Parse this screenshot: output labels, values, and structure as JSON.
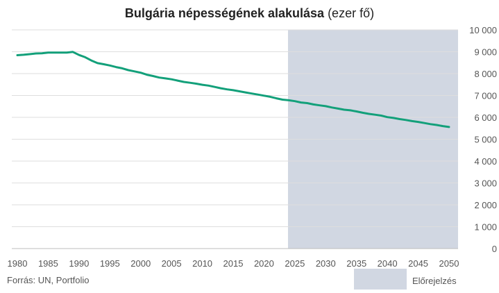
{
  "chart_data": {
    "type": "line",
    "title_bold": "Bulgária népességének alakulása",
    "title_rest": "(ezer fő)",
    "source": "Forrás: UN, Portfolio",
    "legend": {
      "label": "Előrejelzés",
      "color": "#d1d7e2"
    },
    "forecast_range": [
      2024,
      2051
    ],
    "line_color": "#13a07a",
    "xlim": [
      1980,
      2050
    ],
    "ylim": [
      0,
      10000
    ],
    "x_ticks": [
      1980,
      1985,
      1990,
      1995,
      2000,
      2005,
      2010,
      2015,
      2020,
      2025,
      2030,
      2035,
      2040,
      2045,
      2050
    ],
    "y_ticks": [
      {
        "value": 0,
        "label": "0"
      },
      {
        "value": 1000,
        "label": "1 000"
      },
      {
        "value": 2000,
        "label": "2 000"
      },
      {
        "value": 3000,
        "label": "3 000"
      },
      {
        "value": 4000,
        "label": "4 000"
      },
      {
        "value": 5000,
        "label": "5 000"
      },
      {
        "value": 6000,
        "label": "6 000"
      },
      {
        "value": 7000,
        "label": "7 000"
      },
      {
        "value": 8000,
        "label": "8 000"
      },
      {
        "value": 9000,
        "label": "9 000"
      },
      {
        "value": 10000,
        "label": "10 000"
      }
    ],
    "grid": true,
    "series": [
      {
        "x": [
          1980,
          1981,
          1982,
          1983,
          1984,
          1985,
          1986,
          1987,
          1988,
          1989,
          1990,
          1991,
          1992,
          1993,
          1994,
          1995,
          1996,
          1997,
          1998,
          1999,
          2000,
          2001,
          2002,
          2003,
          2004,
          2005,
          2006,
          2007,
          2008,
          2009,
          2010,
          2011,
          2012,
          2013,
          2014,
          2015,
          2016,
          2017,
          2018,
          2019,
          2020,
          2021,
          2022,
          2023,
          2024,
          2025,
          2026,
          2027,
          2028,
          2029,
          2030,
          2031,
          2032,
          2033,
          2034,
          2035,
          2036,
          2037,
          2038,
          2039,
          2040,
          2041,
          2042,
          2043,
          2044,
          2045,
          2046,
          2047,
          2048,
          2049,
          2050
        ],
        "values": [
          8840,
          8860,
          8890,
          8920,
          8930,
          8960,
          8960,
          8960,
          8960,
          8990,
          8850,
          8750,
          8600,
          8480,
          8430,
          8370,
          8300,
          8240,
          8160,
          8100,
          8040,
          7950,
          7890,
          7820,
          7780,
          7740,
          7680,
          7620,
          7580,
          7540,
          7490,
          7450,
          7390,
          7330,
          7280,
          7240,
          7190,
          7140,
          7090,
          7040,
          6990,
          6940,
          6870,
          6810,
          6780,
          6740,
          6680,
          6650,
          6590,
          6550,
          6510,
          6450,
          6400,
          6350,
          6320,
          6270,
          6210,
          6160,
          6120,
          6080,
          6010,
          5970,
          5920,
          5880,
          5830,
          5790,
          5740,
          5690,
          5650,
          5600,
          5560
        ]
      }
    ]
  }
}
